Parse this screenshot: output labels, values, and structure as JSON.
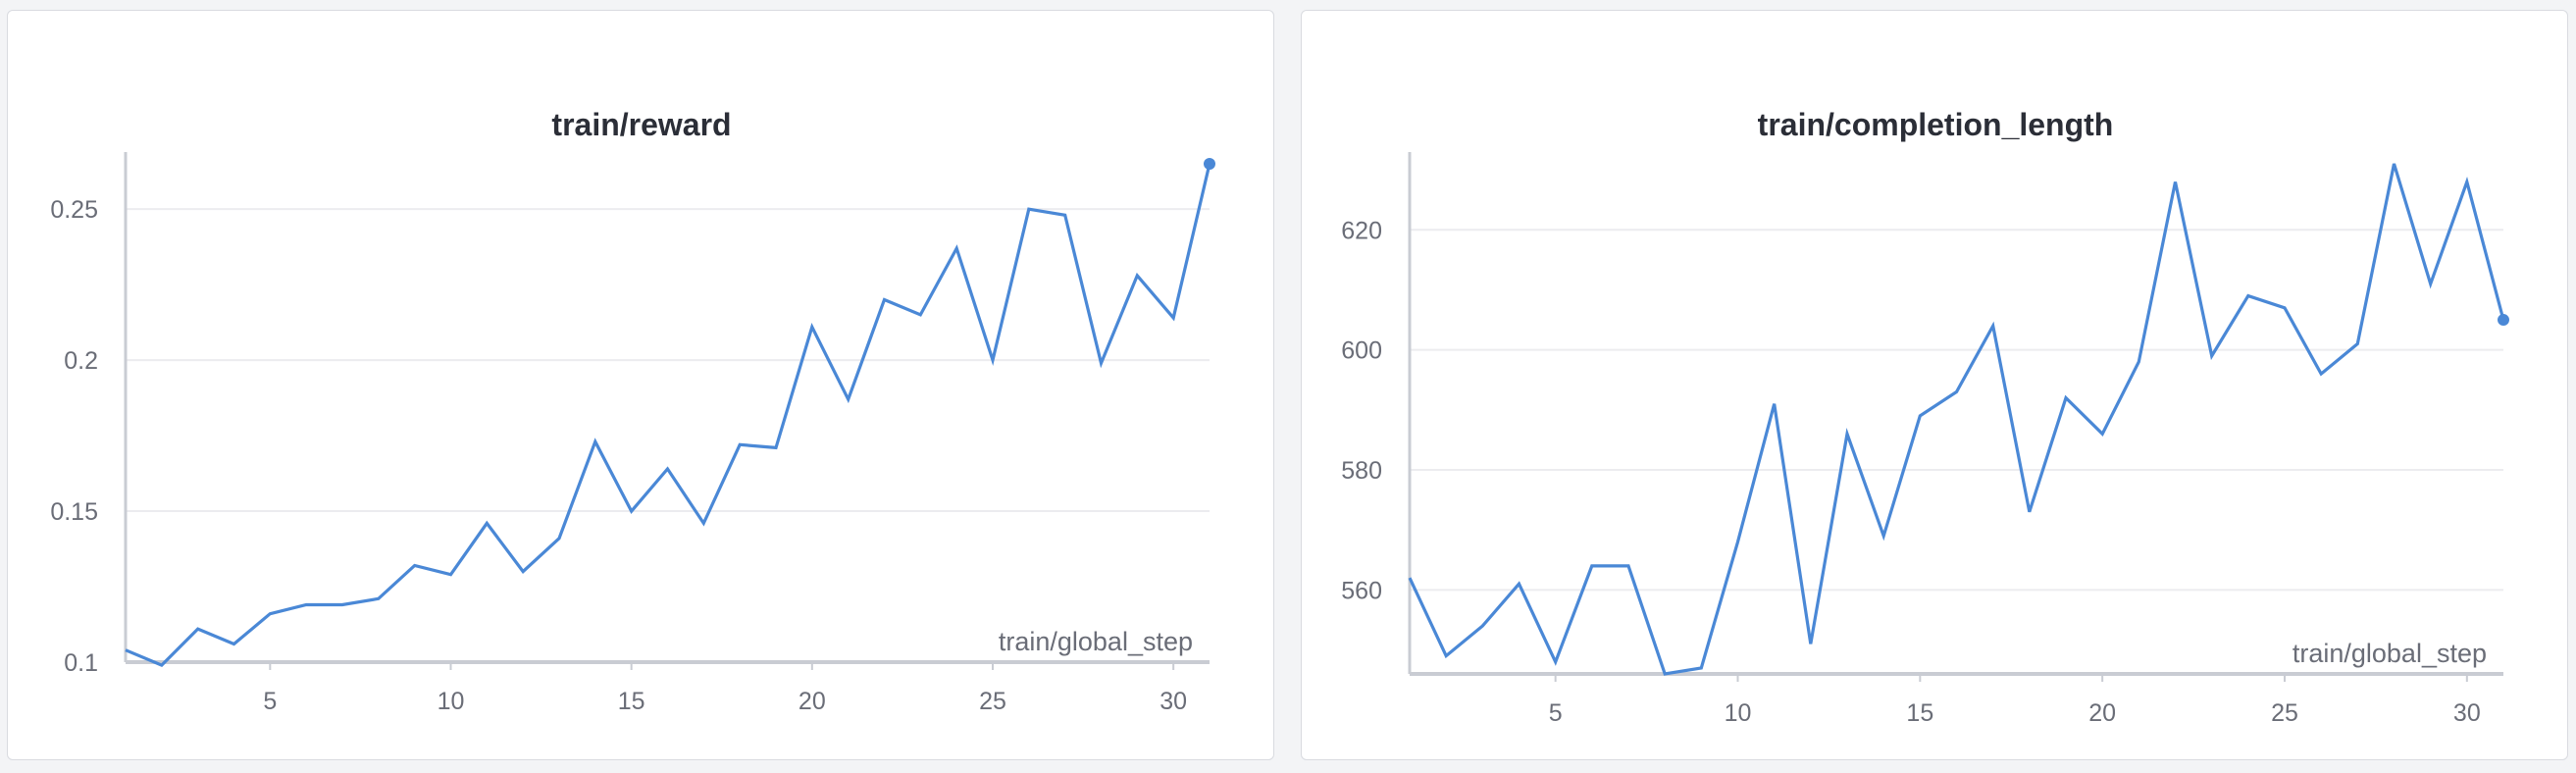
{
  "colors": {
    "line": "#4a88d6",
    "grid": "#ececef",
    "axis": "#c9ccd3",
    "background": "#ffffff"
  },
  "chart_data": [
    {
      "type": "line",
      "title": "train/reward",
      "xlabel": "train/global_step",
      "ylabel": "",
      "xlim": [
        1,
        31
      ],
      "ylim": [
        0.1,
        0.265
      ],
      "xticks": [
        5,
        10,
        15,
        20,
        25,
        30
      ],
      "yticks": [
        0.1,
        0.15,
        0.2,
        0.25
      ],
      "yticklabels": [
        "0.1",
        "0.15",
        "0.2",
        "0.25"
      ],
      "grid": true,
      "series": [
        {
          "x": [
            1,
            2,
            3,
            4,
            5,
            6,
            7,
            8,
            9,
            10,
            11,
            12,
            13,
            14,
            15,
            16,
            17,
            18,
            19,
            20,
            21,
            22,
            23,
            24,
            25,
            26,
            27,
            28,
            29,
            30,
            31
          ],
          "values": [
            0.104,
            0.099,
            0.111,
            0.106,
            0.116,
            0.119,
            0.119,
            0.121,
            0.132,
            0.129,
            0.146,
            0.13,
            0.141,
            0.173,
            0.15,
            0.164,
            0.146,
            0.172,
            0.171,
            0.211,
            0.187,
            0.22,
            0.215,
            0.237,
            0.2,
            0.25,
            0.248,
            0.199,
            0.228,
            0.214,
            0.265
          ]
        }
      ]
    },
    {
      "type": "line",
      "title": "train/completion_length",
      "xlabel": "train/global_step",
      "ylabel": "",
      "xlim": [
        1,
        31
      ],
      "ylim": [
        546,
        631
      ],
      "xticks": [
        5,
        10,
        15,
        20,
        25,
        30
      ],
      "yticks": [
        560,
        580,
        600,
        620
      ],
      "yticklabels": [
        "560",
        "580",
        "600",
        "620"
      ],
      "grid": true,
      "series": [
        {
          "x": [
            1,
            2,
            3,
            4,
            5,
            6,
            7,
            8,
            9,
            10,
            11,
            12,
            13,
            14,
            15,
            16,
            17,
            18,
            19,
            20,
            21,
            22,
            23,
            24,
            25,
            26,
            27,
            28,
            29,
            30,
            31
          ],
          "values": [
            562,
            549,
            554,
            561,
            548,
            564,
            564,
            546,
            547,
            568,
            591,
            551,
            586,
            569,
            589,
            593,
            604,
            573,
            592,
            586,
            598,
            628,
            599,
            609,
            607,
            596,
            601,
            631,
            611,
            628,
            605
          ]
        }
      ]
    }
  ]
}
